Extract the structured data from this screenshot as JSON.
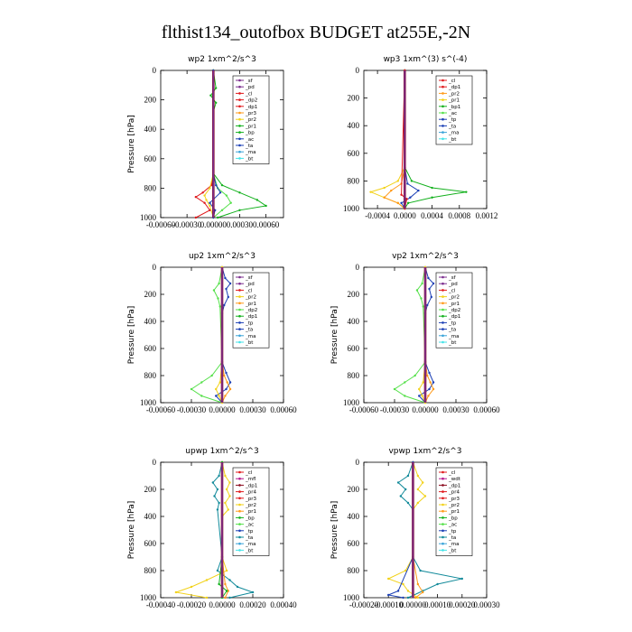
{
  "figure": {
    "title": "flthist134_outofbox  BUDGET at255E,-2N"
  },
  "colors": {
    "purple": "#7b2d8e",
    "magenta": "#b5178f",
    "red": "#e0191c",
    "darkred": "#8b0a1e",
    "orange": "#ff9a1a",
    "yellow": "#f2d21a",
    "green": "#12b01c",
    "lime": "#55e04a",
    "blue": "#1b3fb5",
    "teal": "#128a9a",
    "sky": "#3aa3d9",
    "cyan": "#43e3e8"
  },
  "chart_data": [
    {
      "type": "line",
      "title": "wp2   1xm^2/s^3",
      "ylabel": "Pressure [hPa]",
      "xlim": [
        -0.0006,
        0.0008
      ],
      "ylim": [
        1000,
        0
      ],
      "xticks": [
        -0.0006,
        -0.0003,
        0.0,
        0.0003,
        0.0006
      ],
      "xtick_labels": [
        "-0.00060",
        "-0.00030",
        "0.00000",
        "0.00030",
        "0.00060"
      ],
      "yticks": [
        0,
        200,
        400,
        600,
        800,
        1000
      ],
      "legend": [
        "_sf",
        "_pd",
        "_cl",
        "_dp2",
        "_dp1",
        "_pr3",
        "_pr2",
        "_pr1",
        "_bp",
        "_ac",
        "_ta",
        "_ma",
        "_bt"
      ],
      "legend_colors": [
        "purple",
        "purple",
        "red",
        "red",
        "red",
        "orange",
        "yellow",
        "green",
        "green",
        "blue",
        "blue",
        "sky",
        "cyan"
      ],
      "series": [
        {
          "color": "red",
          "p": [
            0,
            150,
            250,
            700,
            780,
            830,
            860,
            900,
            950,
            1000
          ],
          "v": [
            0,
            0,
            0,
            0,
            -2e-05,
            -0.00012,
            -0.0002,
            -0.0001,
            -4e-05,
            -0.0002
          ]
        },
        {
          "color": "green",
          "p": [
            0,
            120,
            170,
            220,
            280,
            700,
            780,
            830,
            880,
            920,
            950,
            1000
          ],
          "v": [
            0,
            3e-05,
            -3e-05,
            3e-05,
            0,
            0,
            0.0001,
            0.0003,
            0.0005,
            0.0006,
            0.0003,
            5e-05
          ]
        },
        {
          "color": "lime",
          "p": [
            0,
            700,
            800,
            850,
            900,
            950,
            1000
          ],
          "v": [
            0,
            0,
            5e-05,
            0.00015,
            0.0002,
            0.0001,
            0
          ]
        },
        {
          "color": "yellow",
          "p": [
            0,
            700,
            800,
            850,
            880,
            920,
            1000
          ],
          "v": [
            0,
            0,
            -4e-05,
            -0.0001,
            -8e-05,
            -4e-05,
            0
          ]
        },
        {
          "color": "blue",
          "p": [
            0,
            700,
            780,
            830,
            900,
            950,
            1000
          ],
          "v": [
            0,
            0,
            3e-05,
            8e-05,
            -4e-05,
            2e-05,
            0
          ]
        },
        {
          "color": "darkred",
          "p": [
            0,
            1000
          ],
          "v": [
            0,
            0
          ]
        }
      ]
    },
    {
      "type": "line",
      "title": "wp3   1xm^(3) s^(-4)",
      "ylabel": "",
      "xlim": [
        -0.0006,
        0.0012
      ],
      "ylim": [
        1000,
        0
      ],
      "xticks": [
        -0.0004,
        0.0,
        0.0004,
        0.0008,
        0.0012
      ],
      "xtick_labels": [
        "-0.0004",
        "0.0000",
        "0.0004",
        "0.0008",
        "0.0012"
      ],
      "yticks": [
        0,
        200,
        400,
        600,
        800,
        1000
      ],
      "legend": [
        "_cl",
        "_dp1",
        "_pr2",
        "_pr1",
        "_bp1",
        "_ac",
        "_tp",
        "_ta",
        "_ma",
        "_bt"
      ],
      "legend_colors": [
        "red",
        "red",
        "orange",
        "yellow",
        "green",
        "lime",
        "blue",
        "blue",
        "sky",
        "cyan"
      ],
      "series": [
        {
          "color": "green",
          "p": [
            0,
            700,
            800,
            850,
            880,
            920,
            960,
            1000
          ],
          "v": [
            0,
            0,
            0.0001,
            0.0004,
            0.0009,
            0.0004,
            5e-05,
            0
          ]
        },
        {
          "color": "yellow",
          "p": [
            0,
            700,
            800,
            850,
            880,
            920,
            960,
            1000
          ],
          "v": [
            0,
            0,
            -0.0001,
            -0.0003,
            -0.0005,
            -0.0003,
            -0.0001,
            0
          ]
        },
        {
          "color": "orange",
          "p": [
            0,
            700,
            820,
            870,
            920,
            960,
            1000
          ],
          "v": [
            0,
            0,
            -5e-05,
            -0.0002,
            -0.0003,
            -0.0001,
            0
          ]
        },
        {
          "color": "blue",
          "p": [
            0,
            700,
            820,
            870,
            920,
            960,
            1000
          ],
          "v": [
            0,
            0,
            4e-05,
            0.0002,
            8e-05,
            -5e-05,
            0
          ]
        },
        {
          "color": "red",
          "p": [
            0,
            900,
            930,
            1000
          ],
          "v": [
            0,
            -5e-05,
            3e-05,
            0
          ]
        },
        {
          "color": "darkred",
          "p": [
            0,
            1000
          ],
          "v": [
            0,
            0
          ]
        }
      ]
    },
    {
      "type": "line",
      "title": "up2   1xm^2/s^3",
      "ylabel": "Pressure [hPa]",
      "xlim": [
        -0.0006,
        0.0006
      ],
      "ylim": [
        1000,
        0
      ],
      "xticks": [
        -0.0006,
        -0.0003,
        0.0,
        0.0003,
        0.0006
      ],
      "xtick_labels": [
        "-0.00060",
        "-0.00030",
        "0.00000",
        "0.00030",
        "0.00060"
      ],
      "yticks": [
        0,
        200,
        400,
        600,
        800,
        1000
      ],
      "legend": [
        "_sf",
        "_pd",
        "_cl",
        "_pr2",
        "_pr1",
        "_dp2",
        "_dp1",
        "_tp",
        "_ta",
        "_ma",
        "_bt"
      ],
      "legend_colors": [
        "purple",
        "purple",
        "red",
        "yellow",
        "orange",
        "lime",
        "green",
        "blue",
        "blue",
        "sky",
        "cyan"
      ],
      "series": [
        {
          "color": "blue",
          "p": [
            0,
            80,
            120,
            160,
            220,
            280,
            340,
            700,
            780,
            850,
            900,
            950,
            1000
          ],
          "v": [
            0,
            3e-05,
            8e-05,
            4e-05,
            6e-05,
            2e-05,
            0,
            0,
            4e-05,
            8e-05,
            4e-05,
            -6e-05,
            0
          ]
        },
        {
          "color": "lime",
          "p": [
            0,
            120,
            170,
            230,
            290,
            700,
            800,
            850,
            900,
            950,
            1000
          ],
          "v": [
            0,
            -3e-05,
            -8e-05,
            -4e-05,
            -2e-05,
            0,
            -0.0001,
            -0.0002,
            -0.0003,
            -0.0002,
            0
          ]
        },
        {
          "color": "orange",
          "p": [
            0,
            700,
            800,
            850,
            900,
            950,
            1000
          ],
          "v": [
            0,
            0,
            2e-05,
            5e-05,
            8e-05,
            3e-05,
            0
          ]
        },
        {
          "color": "yellow",
          "p": [
            0,
            700,
            850,
            900,
            950,
            1000
          ],
          "v": [
            0,
            0,
            -2e-05,
            -6e-05,
            -3e-05,
            0
          ]
        },
        {
          "color": "darkred",
          "p": [
            0,
            1000
          ],
          "v": [
            0,
            0
          ]
        }
      ]
    },
    {
      "type": "line",
      "title": "vp2   1xm^2/s^3",
      "ylabel": "Pressure [hPa]",
      "xlim": [
        -0.0006,
        0.0006
      ],
      "ylim": [
        1000,
        0
      ],
      "xticks": [
        -0.0006,
        -0.0003,
        0.0,
        0.0003,
        0.0006
      ],
      "xtick_labels": [
        "-0.00060",
        "-0.00030",
        "0.00000",
        "0.00030",
        "0.00060"
      ],
      "yticks": [
        0,
        200,
        400,
        600,
        800,
        1000
      ],
      "legend": [
        "_sf",
        "_pd",
        "_cl",
        "_pr2",
        "_pr1",
        "_dp2",
        "_dp1",
        "_tp",
        "_ta",
        "_ma",
        "_bt"
      ],
      "legend_colors": [
        "purple",
        "purple",
        "red",
        "yellow",
        "orange",
        "lime",
        "green",
        "blue",
        "blue",
        "sky",
        "cyan"
      ],
      "series": [
        {
          "color": "blue",
          "p": [
            0,
            80,
            120,
            160,
            220,
            280,
            340,
            700,
            780,
            850,
            900,
            950,
            1000
          ],
          "v": [
            0,
            3e-05,
            8e-05,
            4e-05,
            6e-05,
            2e-05,
            0,
            0,
            4e-05,
            8e-05,
            4e-05,
            -6e-05,
            0
          ]
        },
        {
          "color": "lime",
          "p": [
            0,
            120,
            170,
            230,
            290,
            700,
            800,
            850,
            900,
            950,
            1000
          ],
          "v": [
            0,
            -3e-05,
            -8e-05,
            -4e-05,
            -2e-05,
            0,
            -0.0001,
            -0.0002,
            -0.0003,
            -0.0002,
            0
          ]
        },
        {
          "color": "orange",
          "p": [
            0,
            700,
            800,
            850,
            900,
            950,
            1000
          ],
          "v": [
            0,
            0,
            2e-05,
            5e-05,
            8e-05,
            3e-05,
            0
          ]
        },
        {
          "color": "yellow",
          "p": [
            0,
            700,
            850,
            900,
            950,
            1000
          ],
          "v": [
            0,
            0,
            -2e-05,
            -6e-05,
            -3e-05,
            0
          ]
        },
        {
          "color": "darkred",
          "p": [
            0,
            1000
          ],
          "v": [
            0,
            0
          ]
        }
      ]
    },
    {
      "type": "line",
      "title": "upwp   1xm^2/s^3",
      "ylabel": "Pressure [hPa]",
      "xlim": [
        -0.0004,
        0.0004
      ],
      "ylim": [
        1000,
        0
      ],
      "xticks": [
        -0.0004,
        -0.0002,
        0.0,
        0.0002,
        0.0004
      ],
      "xtick_labels": [
        "-0.00040",
        "-0.00020",
        "0.00000",
        "0.00020",
        "0.00040"
      ],
      "yticks": [
        0,
        200,
        400,
        600,
        800,
        1000
      ],
      "legend": [
        "_cl",
        "_mfl",
        "_dp1",
        "_pr4",
        "_pr3",
        "_pr2",
        "_pr1",
        "_bp",
        "_ac",
        "_tp",
        "_ta",
        "_ma",
        "_bt"
      ],
      "legend_colors": [
        "red",
        "magenta",
        "darkred",
        "red",
        "red",
        "yellow",
        "orange",
        "green",
        "lime",
        "blue",
        "teal",
        "sky",
        "cyan"
      ],
      "series": [
        {
          "color": "yellow",
          "p": [
            0,
            100,
            150,
            200,
            250,
            300,
            350,
            400,
            700,
            800,
            870,
            920,
            960,
            1000
          ],
          "v": [
            0,
            2e-05,
            5e-05,
            3e-05,
            5e-05,
            2e-05,
            4e-05,
            0,
            0,
            3e-05,
            -0.0001,
            -0.0002,
            -0.0003,
            -0.0001
          ]
        },
        {
          "color": "teal",
          "p": [
            0,
            100,
            150,
            200,
            250,
            300,
            350,
            700,
            800,
            870,
            920,
            960,
            1000
          ],
          "v": [
            0,
            -2e-05,
            -6e-05,
            -3e-05,
            -5e-05,
            -2e-05,
            -3e-05,
            0,
            -3e-05,
            5e-05,
            0.0001,
            0.0002,
            5e-05
          ]
        },
        {
          "color": "orange",
          "p": [
            0,
            700,
            900,
            950,
            1000
          ],
          "v": [
            0,
            0,
            2e-05,
            4e-05,
            2e-05
          ]
        },
        {
          "color": "green",
          "p": [
            0,
            700,
            900,
            950,
            1000
          ],
          "v": [
            0,
            0,
            -2e-05,
            3e-05,
            0
          ]
        },
        {
          "color": "darkred",
          "p": [
            0,
            1000
          ],
          "v": [
            0,
            0
          ]
        }
      ]
    },
    {
      "type": "line",
      "title": "vpwp   1xm^2/s^3",
      "ylabel": "Pressure [hPa]",
      "xlim": [
        -0.0002,
        0.0003
      ],
      "ylim": [
        1000,
        0
      ],
      "xticks": [
        -0.0002,
        -0.0001,
        0.0,
        0.0001,
        0.0002,
        0.0003
      ],
      "xtick_labels": [
        "-0.00020",
        "-0.00010",
        "0.00000",
        "0.00010",
        "0.00020",
        "0.00030"
      ],
      "yticks": [
        0,
        200,
        400,
        600,
        800,
        1000
      ],
      "legend": [
        "_cl",
        "_wdt",
        "_dp1",
        "_pr4",
        "_pr3",
        "_pr2",
        "_pr1",
        "_bp",
        "_ac",
        "_tp",
        "_ta",
        "_ma",
        "_bt"
      ],
      "legend_colors": [
        "red",
        "magenta",
        "darkred",
        "red",
        "red",
        "yellow",
        "orange",
        "green",
        "lime",
        "blue",
        "teal",
        "sky",
        "cyan"
      ],
      "series": [
        {
          "color": "teal",
          "p": [
            0,
            100,
            150,
            200,
            250,
            300,
            350,
            700,
            800,
            860,
            900,
            950,
            1000
          ],
          "v": [
            0,
            -2e-05,
            -6e-05,
            -3e-05,
            -5e-05,
            -2e-05,
            0,
            0,
            3e-05,
            0.0002,
            0.0001,
            4e-05,
            -2e-05
          ]
        },
        {
          "color": "yellow",
          "p": [
            0,
            100,
            150,
            200,
            250,
            300,
            350,
            700,
            800,
            860,
            900,
            950,
            1000
          ],
          "v": [
            0,
            2e-05,
            4e-05,
            2e-05,
            5e-05,
            2e-05,
            0,
            0,
            -3e-05,
            -0.0001,
            -4e-05,
            -2e-05,
            2e-05
          ]
        },
        {
          "color": "orange",
          "p": [
            0,
            700,
            900,
            960,
            1000
          ],
          "v": [
            0,
            0,
            2e-05,
            4e-05,
            1e-05
          ]
        },
        {
          "color": "blue",
          "p": [
            0,
            700,
            950,
            980,
            1000
          ],
          "v": [
            0,
            0,
            -6e-05,
            -0.0001,
            -4e-05
          ]
        },
        {
          "color": "darkred",
          "p": [
            0,
            1000
          ],
          "v": [
            0,
            0
          ]
        }
      ]
    }
  ]
}
